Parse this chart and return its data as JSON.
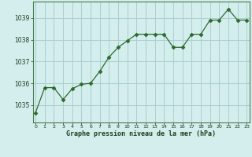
{
  "x": [
    0,
    1,
    2,
    3,
    4,
    5,
    6,
    7,
    8,
    9,
    10,
    11,
    12,
    13,
    14,
    15,
    16,
    17,
    18,
    19,
    20,
    21,
    22,
    23
  ],
  "y": [
    1034.65,
    1035.8,
    1035.8,
    1035.25,
    1035.75,
    1035.95,
    1036.0,
    1036.55,
    1037.2,
    1037.65,
    1037.95,
    1038.25,
    1038.25,
    1038.25,
    1038.25,
    1037.65,
    1037.65,
    1038.25,
    1038.25,
    1038.9,
    1038.9,
    1039.4,
    1038.9,
    1038.9
  ],
  "line_color": "#2d6a2d",
  "marker": "D",
  "marker_size": 2.5,
  "bg_color": "#d4eeee",
  "grid_color": "#aacfcf",
  "xlabel": "Graphe pression niveau de la mer (hPa)",
  "xlabel_color": "#1a3d1a",
  "tick_color": "#1a3d1a",
  "ylim": [
    1034.2,
    1039.75
  ],
  "yticks": [
    1035,
    1036,
    1037,
    1038,
    1039
  ],
  "xticks": [
    0,
    1,
    2,
    3,
    4,
    5,
    6,
    7,
    8,
    9,
    10,
    11,
    12,
    13,
    14,
    15,
    16,
    17,
    18,
    19,
    20,
    21,
    22,
    23
  ],
  "spine_color": "#4a7a4a",
  "xlim": [
    -0.3,
    23.3
  ]
}
